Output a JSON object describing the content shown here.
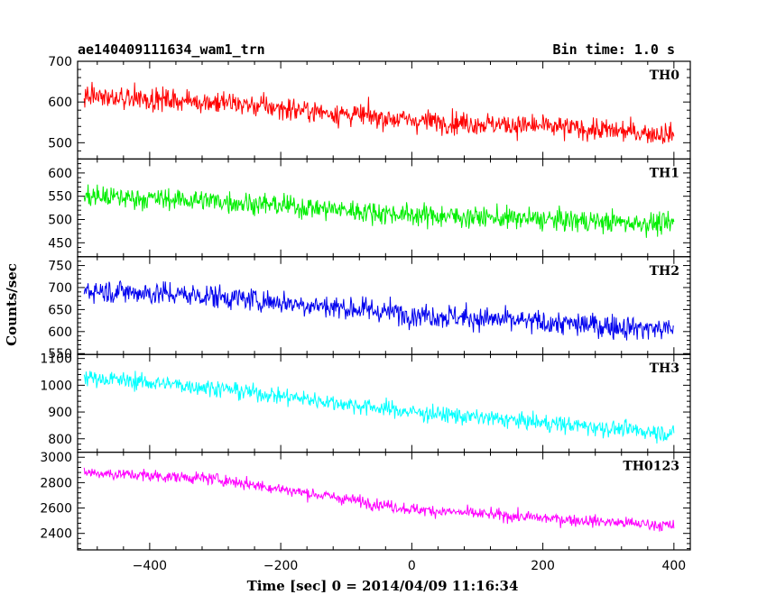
{
  "header": {
    "title": "ae140409111634_wam1_trn",
    "bin_time": "Bin time: 1.0 s"
  },
  "chart_data": {
    "type": "line",
    "title": "ae140409111634_wam1_trn",
    "subtitle": "Bin time: 1.0 s",
    "xlabel": "Time [sec] 0 = 2014/04/09 11:16:34",
    "ylabel": "Counts/sec",
    "xlim": [
      -510,
      425
    ],
    "x_ticks": [
      -400,
      -200,
      0,
      200,
      400
    ],
    "x_tick_labels": [
      "−400",
      "−200",
      "0",
      "200",
      "400"
    ],
    "x_range": [
      -500,
      400
    ],
    "bin_seconds": 1.0,
    "grid": false,
    "panels": [
      {
        "name": "TH0",
        "color": "#ff0000",
        "ylim": [
          460,
          700
        ],
        "y_ticks": [
          500,
          600,
          700
        ],
        "trend": [
          [
            -500,
            615
          ],
          [
            -300,
            600
          ],
          [
            0,
            555
          ],
          [
            200,
            540
          ],
          [
            400,
            520
          ]
        ],
        "noise": 35
      },
      {
        "name": "TH1",
        "color": "#00ee00",
        "ylim": [
          420,
          630
        ],
        "y_ticks": [
          450,
          500,
          550,
          600
        ],
        "trend": [
          [
            -500,
            550
          ],
          [
            -300,
            540
          ],
          [
            0,
            510
          ],
          [
            200,
            500
          ],
          [
            400,
            490
          ]
        ],
        "noise": 30
      },
      {
        "name": "TH2",
        "color": "#0000ee",
        "ylim": [
          548,
          770
        ],
        "y_ticks": [
          550,
          600,
          650,
          700,
          750
        ],
        "trend": [
          [
            -500,
            695
          ],
          [
            -300,
            680
          ],
          [
            0,
            640
          ],
          [
            200,
            620
          ],
          [
            400,
            605
          ]
        ],
        "noise": 35
      },
      {
        "name": "TH3",
        "color": "#00ffff",
        "ylim": [
          750,
          1115
        ],
        "y_ticks": [
          800,
          900,
          1000,
          1100
        ],
        "trend": [
          [
            -500,
            1030
          ],
          [
            -300,
            990
          ],
          [
            0,
            900
          ],
          [
            200,
            860
          ],
          [
            400,
            820
          ]
        ],
        "noise": 40
      },
      {
        "name": "TH0123",
        "color": "#ff00ff",
        "ylim": [
          2270,
          3040
        ],
        "y_ticks": [
          2400,
          2600,
          2800,
          3000
        ],
        "trend": [
          [
            -500,
            2880
          ],
          [
            -300,
            2830
          ],
          [
            0,
            2590
          ],
          [
            200,
            2520
          ],
          [
            400,
            2460
          ]
        ],
        "noise": 60
      }
    ]
  }
}
